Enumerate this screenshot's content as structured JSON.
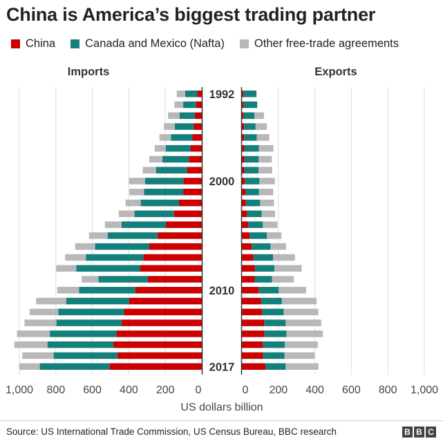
{
  "title": "China is America’s biggest trading partner",
  "legend": [
    {
      "label": "China",
      "color": "#cc0000"
    },
    {
      "label": "Canada and Mexico (Nafta)",
      "color": "#13807b"
    },
    {
      "label": "Other free-trade agreements",
      "color": "#b8b8b8"
    }
  ],
  "source": "Source: US International Trade Commission, US Census Bureau, BBC research",
  "logo": [
    "B",
    "B",
    "C"
  ],
  "chart_data": {
    "type": "bar",
    "orientation": "horizontal",
    "layout": "back-to-back stacked",
    "panels": [
      "Imports",
      "Exports"
    ],
    "xlabel": "US dollars billion",
    "xlim": [
      0,
      1000
    ],
    "xticks": [
      0,
      200,
      400,
      600,
      800,
      1000
    ],
    "xtick_labels": [
      "0",
      "200",
      "400",
      "600",
      "800",
      "1,000"
    ],
    "grid": true,
    "year_labels": [
      "1992",
      "2000",
      "2010",
      "2017"
    ],
    "categories": [
      1992,
      1993,
      1994,
      1995,
      1996,
      1997,
      1998,
      1999,
      2000,
      2001,
      2002,
      2003,
      2004,
      2005,
      2006,
      2007,
      2008,
      2009,
      2010,
      2011,
      2012,
      2013,
      2014,
      2015,
      2016,
      2017
    ],
    "imports": {
      "series": [
        {
          "name": "China",
          "values": [
            25,
            31,
            38,
            45,
            51,
            62,
            71,
            81,
            100,
            102,
            125,
            152,
            197,
            243,
            288,
            321,
            337,
            296,
            365,
            399,
            426,
            440,
            468,
            483,
            463,
            505
          ]
        },
        {
          "name": "Canada and Mexico (Nafta)",
          "values": [
            66,
            71,
            84,
            103,
            118,
            135,
            145,
            170,
            211,
            215,
            210,
            217,
            243,
            273,
            297,
            314,
            351,
            271,
            308,
            344,
            360,
            357,
            365,
            363,
            349,
            383
          ]
        },
        {
          "name": "Other free-trade agreements",
          "values": [
            46,
            48,
            63,
            60,
            63,
            61,
            72,
            73,
            88,
            80,
            83,
            86,
            91,
            102,
            109,
            114,
            110,
            92,
            119,
            165,
            158,
            175,
            180,
            181,
            172,
            113
          ]
        }
      ]
    },
    "exports": {
      "series": [
        {
          "name": "China",
          "values": [
            8,
            9,
            9,
            12,
            12,
            13,
            14,
            13,
            16,
            19,
            22,
            28,
            35,
            42,
            54,
            63,
            70,
            70,
            92,
            104,
            111,
            122,
            124,
            116,
            116,
            130
          ]
        },
        {
          "name": "Canada and Mexico (Nafta)",
          "values": [
            72,
            75,
            60,
            63,
            70,
            80,
            78,
            78,
            80,
            75,
            78,
            80,
            80,
            95,
            103,
            108,
            108,
            95,
            110,
            115,
            118,
            118,
            120,
            120,
            118,
            110
          ]
        },
        {
          "name": "Other free-trade agreements",
          "values": [
            0,
            0,
            52,
            62,
            68,
            80,
            72,
            75,
            85,
            78,
            76,
            74,
            80,
            80,
            85,
            120,
            150,
            120,
            150,
            190,
            190,
            195,
            200,
            180,
            165,
            180
          ]
        }
      ]
    }
  }
}
